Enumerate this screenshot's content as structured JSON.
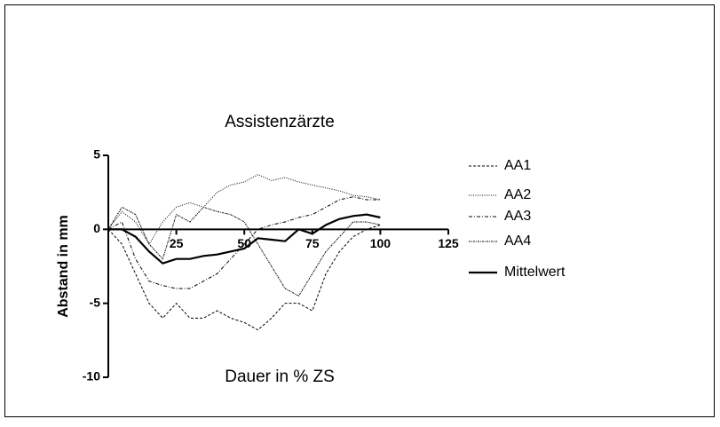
{
  "chart_data": {
    "type": "line",
    "title": "Assistenzärzte",
    "x_label": "Dauer in % ZS",
    "y_label": "Abstand in mm",
    "x": [
      0,
      5,
      10,
      15,
      20,
      25,
      30,
      35,
      40,
      45,
      50,
      55,
      60,
      65,
      70,
      75,
      80,
      85,
      90,
      95,
      100
    ],
    "xlim": [
      0,
      125
    ],
    "xticks": [
      25,
      50,
      75,
      100,
      125
    ],
    "ylim": [
      -10,
      5
    ],
    "yticks": [
      5,
      0,
      -5,
      -10
    ],
    "series": [
      {
        "name": "AA1",
        "color": "#000000",
        "width": 1,
        "dash": "3,2",
        "values": [
          0,
          -1,
          -3,
          -5,
          -6,
          -5,
          -6,
          -6,
          -5.5,
          -6,
          -6.3,
          -6.8,
          -6,
          -5,
          -5,
          -5.5,
          -3,
          -1.5,
          -0.5,
          0,
          0.3
        ]
      },
      {
        "name": "AA2",
        "color": "#000000",
        "width": 1,
        "dash": "1,1.5",
        "values": [
          0,
          1.2,
          0.5,
          -1,
          0.5,
          1.5,
          1.8,
          1.5,
          2.5,
          3,
          3.2,
          3.7,
          3.3,
          3.5,
          3.2,
          3,
          2.8,
          2.6,
          2.3,
          2.2,
          2
        ]
      },
      {
        "name": "AA3",
        "color": "#000000",
        "width": 1,
        "dash": "4,2,1,2",
        "values": [
          0,
          0.5,
          -2,
          -3.5,
          -3.8,
          -4,
          -4,
          -3.5,
          -3,
          -2,
          -1,
          0,
          0.3,
          0.5,
          0.8,
          1,
          1.5,
          2,
          2.2,
          2,
          2
        ]
      },
      {
        "name": "AA4",
        "color": "#000000",
        "width": 1,
        "dash": "2,1,1,1",
        "values": [
          0,
          1.5,
          1,
          -1,
          -2,
          1,
          0.5,
          1.5,
          1.2,
          1,
          0.5,
          -1,
          -2.5,
          -4,
          -4.5,
          -3,
          -1.5,
          -0.5,
          0.5,
          0.5,
          0.3
        ]
      },
      {
        "name": "Mittelwert",
        "color": "#000000",
        "width": 2.2,
        "dash": "none",
        "values": [
          0,
          0,
          -0.5,
          -1.5,
          -2.3,
          -2,
          -2,
          -1.8,
          -1.7,
          -1.5,
          -1.3,
          -0.6,
          -0.7,
          -0.8,
          0,
          -0.3,
          0.3,
          0.7,
          0.9,
          1,
          0.8
        ]
      }
    ]
  }
}
